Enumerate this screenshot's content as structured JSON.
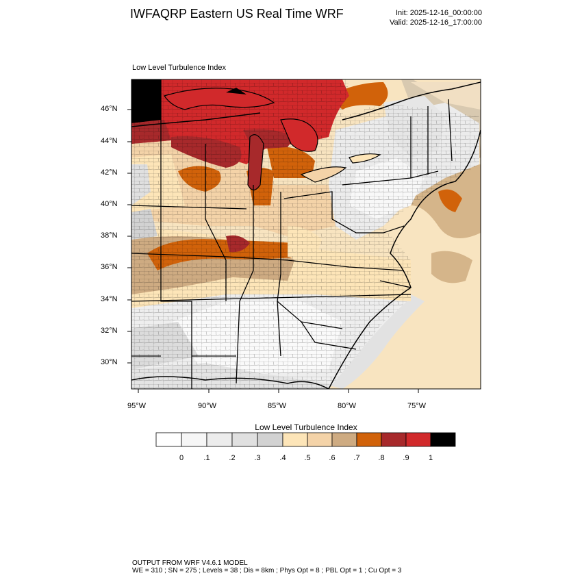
{
  "header": {
    "title": "IWFAQRP Eastern US Real Time WRF",
    "init": "Init: 2025-12-16_00:00:00",
    "valid": "Valid: 2025-12-16_17:00:00"
  },
  "map": {
    "field_label": "Low Level Turbulence Index",
    "lat_labels": [
      "46°N",
      "44°N",
      "42°N",
      "40°N",
      "38°N",
      "36°N",
      "34°N",
      "32°N",
      "30°N"
    ],
    "lon_labels": [
      "95°W",
      "90°W",
      "85°W",
      "80°W",
      "75°W"
    ]
  },
  "colorbar": {
    "title": "Low Level Turbulence Index",
    "tick_labels": [
      "0",
      ".1",
      ".2",
      ".3",
      ".4",
      ".5",
      ".6",
      ".7",
      ".8",
      ".9",
      "1"
    ],
    "colors": [
      "#ffffff",
      "#f6f6f6",
      "#ececec",
      "#e0e0e0",
      "#d2d2d2",
      "#fde5b8",
      "#f4d3a8",
      "#ceab82",
      "#d1620a",
      "#a7292b",
      "#d1292b",
      "#000000"
    ]
  },
  "footer": {
    "line1": "OUTPUT FROM WRF V4.6.1 MODEL",
    "line2": "WE = 310 ; SN = 275 ; Levels = 38 ; Dis = 8km ; Phys Opt = 8 ; PBL Opt = 1 ; Cu Opt = 3"
  }
}
